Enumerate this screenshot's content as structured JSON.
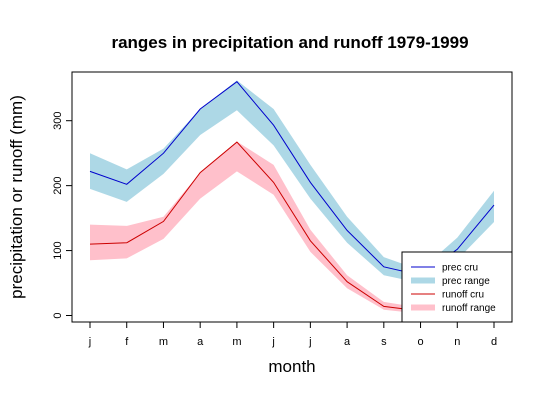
{
  "chart_data": {
    "type": "line",
    "title": "ranges in precipitation and runoff 1979-1999",
    "xlabel": "month",
    "ylabel": "precipitation or runoff (mm)",
    "categories": [
      "j",
      "f",
      "m",
      "a",
      "m",
      "j",
      "j",
      "a",
      "s",
      "o",
      "n",
      "d"
    ],
    "ylim": [
      -10,
      375
    ],
    "yticks": [
      0,
      100,
      200,
      300
    ],
    "grid": false,
    "legend_position": "bottom-right",
    "series": [
      {
        "name": "prec cru",
        "kind": "line",
        "color": "#0000cc",
        "values": [
          222,
          202,
          250,
          318,
          360,
          293,
          205,
          131,
          75,
          62,
          102,
          170
        ]
      },
      {
        "name": "prec range",
        "kind": "band",
        "color": "#add8e6",
        "lower": [
          195,
          175,
          218,
          278,
          316,
          262,
          180,
          112,
          62,
          50,
          86,
          144
        ],
        "upper": [
          250,
          225,
          257,
          318,
          362,
          318,
          232,
          152,
          90,
          70,
          120,
          192
        ]
      },
      {
        "name": "runoff cru",
        "kind": "line",
        "color": "#cc0000",
        "values": [
          110,
          112,
          145,
          220,
          267,
          205,
          115,
          52,
          14,
          7,
          15,
          25
        ]
      },
      {
        "name": "runoff range",
        "kind": "band",
        "color": "#ffc0cb",
        "lower": [
          85,
          88,
          118,
          180,
          222,
          186,
          98,
          42,
          9,
          3,
          8,
          15
        ],
        "upper": [
          140,
          138,
          152,
          220,
          268,
          232,
          132,
          62,
          21,
          12,
          22,
          34
        ]
      }
    ]
  }
}
